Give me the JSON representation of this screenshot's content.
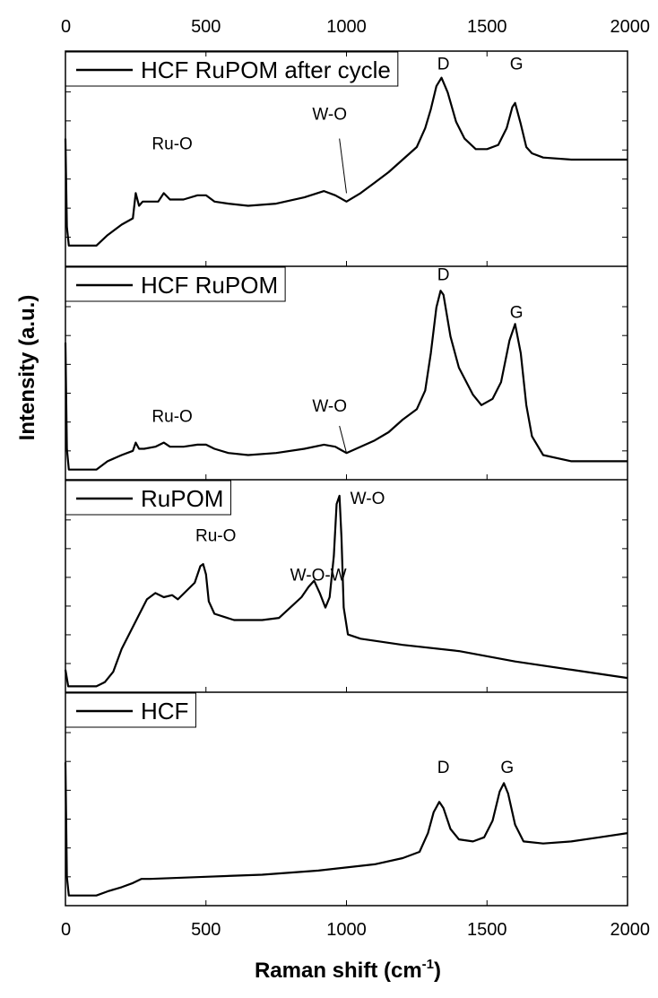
{
  "chart_data": {
    "type": "line",
    "xlabel": "Raman shift (cm",
    "xlabel_sup": "-1",
    "xlabel_end": ")",
    "ylabel": "Intensity (a.u.)",
    "xlim": [
      0,
      2000
    ],
    "x_ticks": [
      "0",
      "500",
      "1000",
      "1500",
      "2000"
    ],
    "ylim": [
      0,
      100
    ],
    "grid": false,
    "legend_placement": "top-left",
    "panels": [
      {
        "legend": "HCF RuPOM after cycle",
        "points": [
          [
            0,
            60
          ],
          [
            5,
            18
          ],
          [
            12,
            9
          ],
          [
            110,
            9
          ],
          [
            150,
            14
          ],
          [
            200,
            19
          ],
          [
            240,
            22
          ],
          [
            250,
            34
          ],
          [
            262,
            28
          ],
          [
            275,
            30
          ],
          [
            300,
            30
          ],
          [
            330,
            30
          ],
          [
            350,
            34
          ],
          [
            372,
            31
          ],
          [
            420,
            31
          ],
          [
            470,
            33
          ],
          [
            500,
            33
          ],
          [
            530,
            30
          ],
          [
            580,
            29
          ],
          [
            650,
            28
          ],
          [
            750,
            29
          ],
          [
            850,
            32
          ],
          [
            920,
            35
          ],
          [
            960,
            33
          ],
          [
            1000,
            30
          ],
          [
            1050,
            34
          ],
          [
            1100,
            39
          ],
          [
            1150,
            44
          ],
          [
            1200,
            50
          ],
          [
            1250,
            56
          ],
          [
            1280,
            65
          ],
          [
            1300,
            74
          ],
          [
            1320,
            85
          ],
          [
            1338,
            89
          ],
          [
            1360,
            82
          ],
          [
            1390,
            68
          ],
          [
            1420,
            60
          ],
          [
            1460,
            55
          ],
          [
            1500,
            55
          ],
          [
            1540,
            57
          ],
          [
            1570,
            65
          ],
          [
            1590,
            75
          ],
          [
            1600,
            77
          ],
          [
            1620,
            67
          ],
          [
            1640,
            56
          ],
          [
            1660,
            53
          ],
          [
            1700,
            51
          ],
          [
            1800,
            50
          ],
          [
            2000,
            50
          ]
        ],
        "annotations": [
          {
            "text": "D",
            "x": 1345,
            "y": 93
          },
          {
            "text": "G",
            "x": 1605,
            "y": 93
          },
          {
            "text": "Ru-O",
            "x": 380,
            "y": 55
          },
          {
            "text": "W-O",
            "x": 940,
            "y": 69
          }
        ],
        "leader": [
          [
            975,
            60
          ],
          [
            1000,
            34
          ]
        ]
      },
      {
        "legend": "HCF RuPOM",
        "points": [
          [
            0,
            65
          ],
          [
            5,
            14
          ],
          [
            12,
            4
          ],
          [
            110,
            4
          ],
          [
            150,
            8
          ],
          [
            200,
            11
          ],
          [
            240,
            13
          ],
          [
            250,
            17
          ],
          [
            262,
            14
          ],
          [
            280,
            14
          ],
          [
            320,
            15
          ],
          [
            350,
            17
          ],
          [
            372,
            15
          ],
          [
            420,
            15
          ],
          [
            470,
            16
          ],
          [
            500,
            16
          ],
          [
            530,
            14
          ],
          [
            580,
            12
          ],
          [
            650,
            11
          ],
          [
            750,
            12
          ],
          [
            850,
            14
          ],
          [
            920,
            16
          ],
          [
            960,
            15
          ],
          [
            1000,
            12
          ],
          [
            1050,
            15
          ],
          [
            1100,
            18
          ],
          [
            1150,
            22
          ],
          [
            1200,
            28
          ],
          [
            1250,
            33
          ],
          [
            1280,
            42
          ],
          [
            1300,
            60
          ],
          [
            1320,
            82
          ],
          [
            1335,
            90
          ],
          [
            1345,
            88
          ],
          [
            1370,
            68
          ],
          [
            1400,
            53
          ],
          [
            1450,
            40
          ],
          [
            1480,
            35
          ],
          [
            1520,
            38
          ],
          [
            1550,
            46
          ],
          [
            1580,
            66
          ],
          [
            1600,
            74
          ],
          [
            1620,
            60
          ],
          [
            1640,
            35
          ],
          [
            1660,
            20
          ],
          [
            1700,
            11
          ],
          [
            1800,
            8
          ],
          [
            2000,
            8
          ]
        ],
        "annotations": [
          {
            "text": "D",
            "x": 1345,
            "y": 95
          },
          {
            "text": "G",
            "x": 1605,
            "y": 77
          },
          {
            "text": "Ru-O",
            "x": 380,
            "y": 27
          },
          {
            "text": "W-O",
            "x": 940,
            "y": 32
          }
        ],
        "leader": [
          [
            975,
            25
          ],
          [
            1000,
            12
          ]
        ]
      },
      {
        "legend": "RuPOM",
        "points": [
          [
            0,
            10
          ],
          [
            10,
            2
          ],
          [
            110,
            2
          ],
          [
            140,
            4
          ],
          [
            170,
            9
          ],
          [
            200,
            20
          ],
          [
            230,
            28
          ],
          [
            260,
            36
          ],
          [
            290,
            44
          ],
          [
            320,
            47
          ],
          [
            350,
            45
          ],
          [
            380,
            46
          ],
          [
            400,
            44
          ],
          [
            430,
            48
          ],
          [
            460,
            52
          ],
          [
            480,
            60
          ],
          [
            490,
            61
          ],
          [
            500,
            56
          ],
          [
            510,
            43
          ],
          [
            530,
            37
          ],
          [
            600,
            34
          ],
          [
            700,
            34
          ],
          [
            760,
            35
          ],
          [
            800,
            40
          ],
          [
            840,
            45
          ],
          [
            865,
            50
          ],
          [
            885,
            53
          ],
          [
            905,
            47
          ],
          [
            925,
            40
          ],
          [
            940,
            45
          ],
          [
            955,
            65
          ],
          [
            965,
            90
          ],
          [
            975,
            94
          ],
          [
            982,
            74
          ],
          [
            990,
            40
          ],
          [
            1005,
            27
          ],
          [
            1050,
            25
          ],
          [
            1200,
            22
          ],
          [
            1400,
            19
          ],
          [
            1600,
            14
          ],
          [
            1800,
            10
          ],
          [
            2000,
            6
          ]
        ],
        "annotations": [
          {
            "text": "Ru-O",
            "x": 535,
            "y": 72
          },
          {
            "text": "W-O-W",
            "x": 900,
            "y": 53
          },
          {
            "text": "W-O",
            "x": 1075,
            "y": 90
          }
        ]
      },
      {
        "legend": "HCF",
        "points": [
          [
            0,
            68
          ],
          [
            5,
            13
          ],
          [
            12,
            4
          ],
          [
            110,
            4
          ],
          [
            150,
            6
          ],
          [
            200,
            8
          ],
          [
            240,
            10
          ],
          [
            270,
            12
          ],
          [
            300,
            12
          ],
          [
            500,
            13
          ],
          [
            700,
            14
          ],
          [
            900,
            16
          ],
          [
            1100,
            19
          ],
          [
            1200,
            22
          ],
          [
            1260,
            25
          ],
          [
            1290,
            34
          ],
          [
            1310,
            44
          ],
          [
            1330,
            49
          ],
          [
            1345,
            46
          ],
          [
            1370,
            36
          ],
          [
            1400,
            31
          ],
          [
            1450,
            30
          ],
          [
            1490,
            32
          ],
          [
            1520,
            40
          ],
          [
            1545,
            54
          ],
          [
            1560,
            58
          ],
          [
            1575,
            53
          ],
          [
            1600,
            38
          ],
          [
            1630,
            30
          ],
          [
            1700,
            29
          ],
          [
            1800,
            30
          ],
          [
            1900,
            32
          ],
          [
            2000,
            34
          ]
        ],
        "annotations": [
          {
            "text": "D",
            "x": 1345,
            "y": 63
          },
          {
            "text": "G",
            "x": 1572,
            "y": 63
          }
        ]
      }
    ]
  }
}
